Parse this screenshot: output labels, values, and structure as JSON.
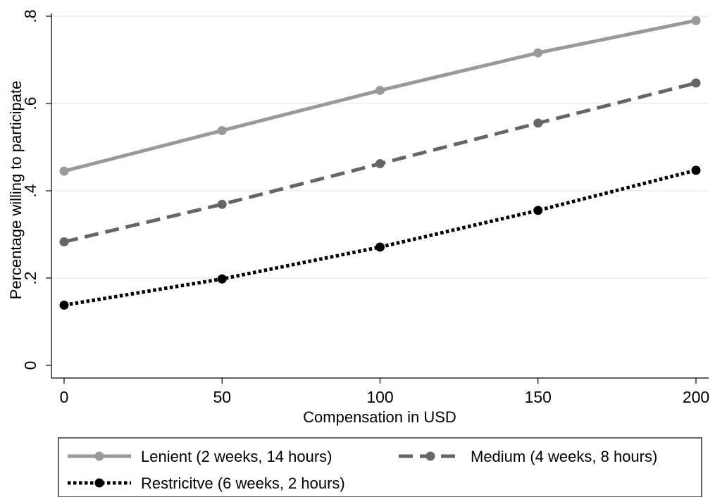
{
  "chart_data": {
    "type": "line",
    "xlabel": "Compensation in USD",
    "ylabel": "Percentage willing to participate",
    "x": [
      0,
      50,
      100,
      150,
      200
    ],
    "xticks": [
      0,
      50,
      100,
      150,
      200
    ],
    "xtick_labels": [
      "0",
      "50",
      "100",
      "150",
      "200"
    ],
    "yticks": [
      0,
      0.2,
      0.4,
      0.6,
      0.8
    ],
    "ytick_labels": [
      "0",
      ".2",
      ".4",
      ".6",
      ".8"
    ],
    "xlim": [
      0,
      200
    ],
    "ylim": [
      0,
      0.8
    ],
    "grid": true,
    "legend_position": "bottom",
    "series": [
      {
        "name": "Lenient (2 weeks, 14 hours)",
        "values": [
          0.445,
          0.538,
          0.63,
          0.716,
          0.79
        ],
        "color": "#999999",
        "style": "solid"
      },
      {
        "name": "Medium (4 weeks, 8 hours)",
        "values": [
          0.283,
          0.369,
          0.462,
          0.555,
          0.647
        ],
        "color": "#666666",
        "style": "dashed"
      },
      {
        "name": "Restricitve (6 weeks, 2 hours)",
        "values": [
          0.138,
          0.198,
          0.271,
          0.355,
          0.447
        ],
        "color": "#000000",
        "style": "dotted"
      }
    ]
  }
}
